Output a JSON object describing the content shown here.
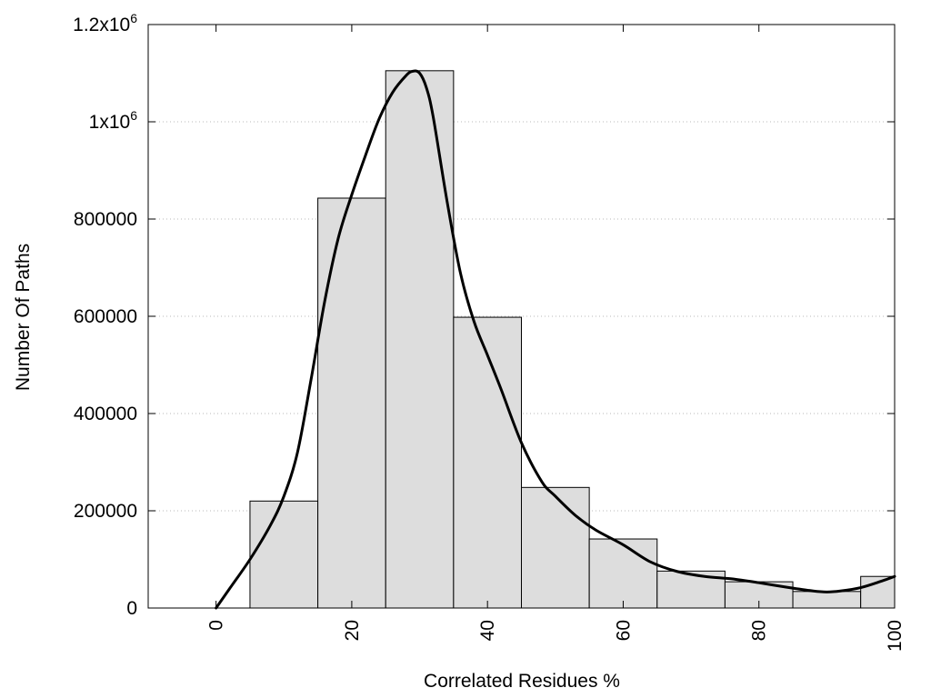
{
  "chart_data": {
    "type": "bar",
    "subtype": "histogram with smoothed density curve",
    "title": "",
    "xlabel": "Correlated Residues %",
    "ylabel": "Number Of Paths",
    "xlim": [
      -10,
      100
    ],
    "ylim": [
      0,
      1200000
    ],
    "grid": "horizontal dotted",
    "legend": "none",
    "x_ticks": [
      {
        "value": 0,
        "label": "0"
      },
      {
        "value": 20,
        "label": "20"
      },
      {
        "value": 40,
        "label": "40"
      },
      {
        "value": 60,
        "label": "60"
      },
      {
        "value": 80,
        "label": "80"
      },
      {
        "value": 100,
        "label": "100"
      }
    ],
    "y_ticks": [
      {
        "value": 0,
        "label": "0"
      },
      {
        "value": 200000,
        "label": "200000"
      },
      {
        "value": 400000,
        "label": "400000"
      },
      {
        "value": 600000,
        "label": "600000"
      },
      {
        "value": 800000,
        "label": "800000"
      },
      {
        "value": 1000000,
        "label": "1x10",
        "sup": "6"
      },
      {
        "value": 1200000,
        "label": "1.2x10",
        "sup": "6"
      }
    ],
    "bins": [
      {
        "start": 5,
        "end": 15,
        "value": 220000
      },
      {
        "start": 15,
        "end": 25,
        "value": 843000
      },
      {
        "start": 25,
        "end": 35,
        "value": 1105000
      },
      {
        "start": 35,
        "end": 45,
        "value": 598000
      },
      {
        "start": 45,
        "end": 55,
        "value": 248000
      },
      {
        "start": 55,
        "end": 65,
        "value": 142000
      },
      {
        "start": 65,
        "end": 75,
        "value": 76000
      },
      {
        "start": 75,
        "end": 85,
        "value": 54000
      },
      {
        "start": 85,
        "end": 95,
        "value": 34000
      },
      {
        "start": 95,
        "end": 100,
        "value": 65000
      }
    ],
    "curve": {
      "x": [
        0,
        2,
        5,
        8,
        10,
        12,
        14,
        16,
        18,
        20,
        22,
        24,
        26,
        28,
        29,
        30,
        31,
        32,
        34,
        36,
        38,
        40,
        42,
        45,
        48,
        50,
        53,
        56,
        60,
        64,
        68,
        72,
        76,
        80,
        84,
        88,
        90,
        92,
        95,
        98,
        100
      ],
      "y": [
        0,
        40000,
        100000,
        170000,
        230000,
        320000,
        470000,
        630000,
        760000,
        850000,
        930000,
        1005000,
        1060000,
        1095000,
        1104000,
        1100000,
        1070000,
        1010000,
        840000,
        690000,
        590000,
        520000,
        450000,
        340000,
        260000,
        230000,
        190000,
        160000,
        130000,
        95000,
        75000,
        65000,
        60000,
        52000,
        43000,
        35000,
        33000,
        35000,
        42000,
        55000,
        65000
      ]
    },
    "colors": {
      "bar_fill": "#dddddd",
      "bar_stroke": "#000000",
      "curve": "#000000",
      "grid": "#b8b8b8"
    }
  }
}
